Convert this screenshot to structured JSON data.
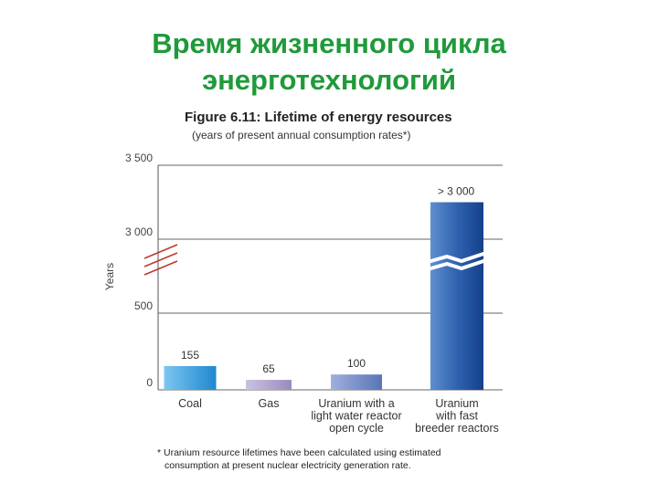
{
  "slide": {
    "title_line1": "Время жизненного цикла",
    "title_line2": "энерготехнологий"
  },
  "figure": {
    "title": "Figure 6.11: Lifetime of energy resources",
    "subtitle": "(years of present annual consumption rates*)",
    "footnote_line1": "* Uranium resource lifetimes have been calculated using estimated",
    "footnote_line2": "consumption at present nuclear electricity generation rate."
  },
  "colors": {
    "title_green": "#1f9a3a",
    "bar_coal": "#3aa0e0",
    "bar_gas": "#a89ac8",
    "bar_uranium_lwr": "#6f86c4",
    "bar_uranium_fast": "#2a5aa8",
    "axis_break": "#c0392b"
  },
  "chart_data": {
    "type": "bar",
    "ylabel": "Years",
    "y_ticks": [
      {
        "label": "0",
        "value": 0
      },
      {
        "label": "500",
        "value": 500
      },
      {
        "label": "3 000",
        "value": 3000
      },
      {
        "label": "3 500",
        "value": 3500
      }
    ],
    "y_axis_break": [
      500,
      3000
    ],
    "grid": true,
    "categories": [
      [
        "Coal"
      ],
      [
        "Gas"
      ],
      [
        "Uranium with a",
        "light water reactor",
        "open cycle"
      ],
      [
        "Uranium",
        "with fast",
        "breeder reactors"
      ]
    ],
    "values": [
      155,
      65,
      100,
      3250
    ],
    "data_labels": [
      "155",
      "65",
      "100",
      "> 3 000"
    ]
  }
}
